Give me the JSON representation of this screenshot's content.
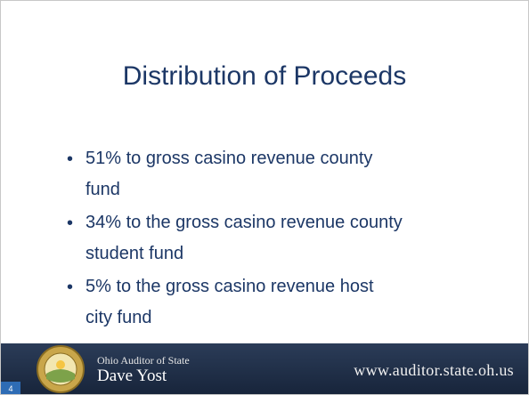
{
  "slide": {
    "title": "Distribution of Proceeds",
    "bullets": [
      {
        "lines": [
          "51% to gross casino revenue county",
          "fund"
        ]
      },
      {
        "lines": [
          "34% to the gross casino revenue county",
          "student fund"
        ]
      },
      {
        "lines": [
          "5% to the gross casino revenue host",
          "city fund"
        ]
      }
    ],
    "page_number": 4
  },
  "footer": {
    "office": "Ohio Auditor of State",
    "name": "Dave Yost",
    "url": "www.auditor.state.oh.us"
  }
}
